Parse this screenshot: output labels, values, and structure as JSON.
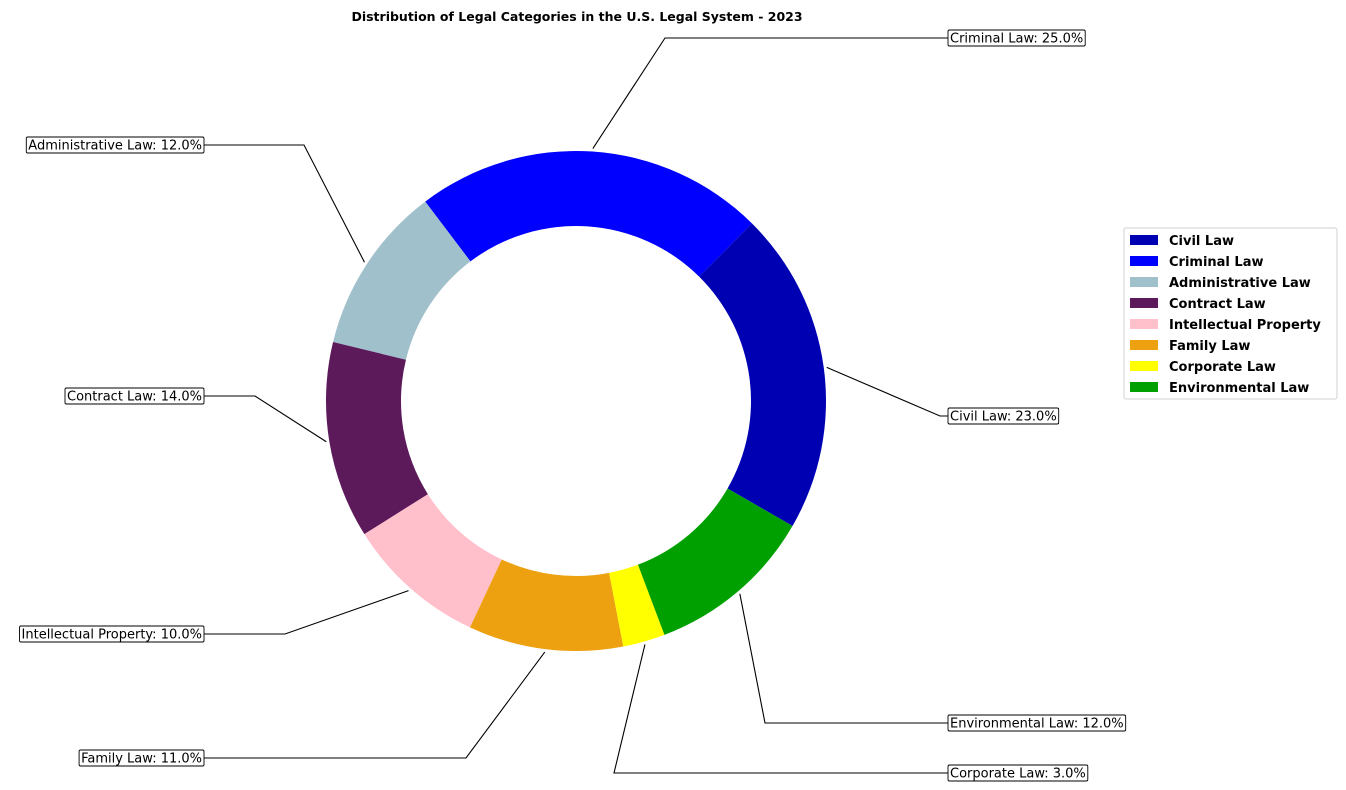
{
  "chart_data": {
    "type": "donut",
    "title": "Distribution of Legal Categories in the U.S. Legal System - 2023",
    "legend_position": "right",
    "slices": [
      {
        "label": "Civil Law",
        "value": 23.0,
        "display": "Civil Law: 23.0%",
        "color": "#0000B3"
      },
      {
        "label": "Criminal Law",
        "value": 25.0,
        "display": "Criminal Law: 25.0%",
        "color": "#0000FF"
      },
      {
        "label": "Administrative Law",
        "value": 12.0,
        "display": "Administrative Law: 12.0%",
        "color": "#A0C0CC"
      },
      {
        "label": "Contract Law",
        "value": 14.0,
        "display": "Contract Law: 14.0%",
        "color": "#5C1A5A"
      },
      {
        "label": "Intellectual Property",
        "value": 10.0,
        "display": "Intellectual Property: 10.0%",
        "color": "#FFC0CB"
      },
      {
        "label": "Family Law",
        "value": 11.0,
        "display": "Family Law: 11.0%",
        "color": "#EDA010"
      },
      {
        "label": "Corporate Law",
        "value": 3.0,
        "display": "Corporate Law: 3.0%",
        "color": "#FFFF00"
      },
      {
        "label": "Environmental Law",
        "value": 12.0,
        "display": "Environmental Law: 12.0%",
        "color": "#00A000"
      }
    ]
  }
}
